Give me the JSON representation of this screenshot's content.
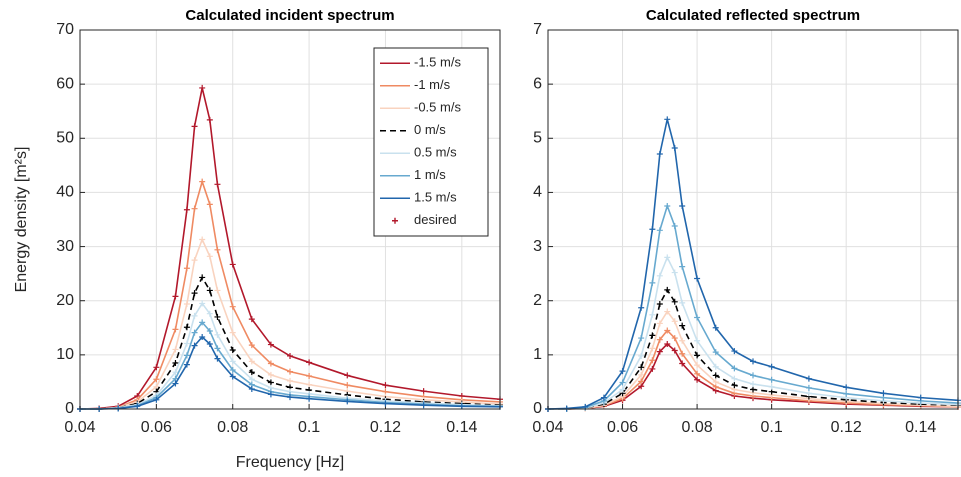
{
  "chart_data": [
    {
      "type": "line",
      "title": "Calculated incident spectrum",
      "xlabel": "Frequency [Hz]",
      "ylabel": "Energy density [m²s]",
      "xlim": [
        0.04,
        0.15
      ],
      "xticks": [
        0.04,
        0.06,
        0.08,
        0.1,
        0.12,
        0.14
      ],
      "ylim": [
        0,
        70
      ],
      "yticks": [
        0,
        10,
        20,
        30,
        40,
        50,
        60,
        70
      ],
      "grid": true,
      "legend": "upper right",
      "marker": "+",
      "marker_label": "desired",
      "marker_label_color": "#b2182b",
      "x": [
        0.04,
        0.045,
        0.05,
        0.055,
        0.06,
        0.065,
        0.068,
        0.07,
        0.072,
        0.074,
        0.076,
        0.08,
        0.085,
        0.09,
        0.095,
        0.1,
        0.11,
        0.12,
        0.13,
        0.14,
        0.15
      ],
      "series": [
        {
          "name": "-1.5 m/s",
          "color": "#b2182b",
          "values": [
            0,
            0.1,
            0.5,
            2.4,
            7.7,
            20.8,
            36.8,
            52.2,
            59.3,
            53.4,
            41.5,
            26.7,
            16.6,
            11.9,
            9.8,
            8.6,
            6.2,
            4.4,
            3.3,
            2.4,
            1.8
          ]
        },
        {
          "name": "-1 m/s",
          "color": "#ef8a62",
          "values": [
            0,
            0,
            0.3,
            1.7,
            5.5,
            14.7,
            26,
            37,
            42,
            37.8,
            29.4,
            18.9,
            11.8,
            8.4,
            6.9,
            6.1,
            4.4,
            3.2,
            2.3,
            1.7,
            1.3
          ]
        },
        {
          "name": "-0.5 m/s",
          "color": "#f9d3bf",
          "values": [
            0,
            0,
            0.3,
            1.3,
            4.1,
            11,
            19.4,
            27.5,
            31.3,
            28.2,
            21.9,
            14.1,
            8.8,
            6.3,
            5.2,
            4.5,
            3.3,
            2.3,
            1.7,
            1.3,
            0.9
          ]
        },
        {
          "name": "0 m/s",
          "color": "#000000",
          "dashed": true,
          "values": [
            0,
            0,
            0.2,
            1,
            3.2,
            8.5,
            15.1,
            21.4,
            24.3,
            21.9,
            17,
            10.9,
            6.8,
            4.9,
            4,
            3.5,
            2.6,
            1.8,
            1.3,
            1,
            0.7
          ]
        },
        {
          "name": "0.5 m/s",
          "color": "#c9e1ee",
          "values": [
            0,
            0,
            0.2,
            0.8,
            2.5,
            6.8,
            12.1,
            17.2,
            19.5,
            17.6,
            13.7,
            8.8,
            5.5,
            3.9,
            3.2,
            2.8,
            2,
            1.5,
            1.1,
            0.8,
            0.6
          ]
        },
        {
          "name": "1 m/s",
          "color": "#67a9cf",
          "values": [
            0,
            0,
            0.1,
            0.6,
            2.1,
            5.6,
            9.9,
            14.1,
            16,
            14.4,
            11.2,
            7.2,
            4.5,
            3.2,
            2.6,
            2.3,
            1.7,
            1.2,
            0.9,
            0.6,
            0.5
          ]
        },
        {
          "name": "1.5 m/s",
          "color": "#2166ac",
          "values": [
            0,
            0,
            0.1,
            0.5,
            1.7,
            4.7,
            8.2,
            11.7,
            13.3,
            12,
            9.3,
            6,
            3.7,
            2.7,
            2.2,
            1.9,
            1.4,
            1,
            0.7,
            0.5,
            0.4
          ]
        }
      ]
    },
    {
      "type": "line",
      "title": "Calculated reflected spectrum",
      "xlim": [
        0.04,
        0.15
      ],
      "xticks": [
        0.04,
        0.06,
        0.08,
        0.1,
        0.12,
        0.14
      ],
      "ylim": [
        0,
        7
      ],
      "yticks": [
        0,
        1,
        2,
        3,
        4,
        5,
        6,
        7
      ],
      "grid": true,
      "marker": "+",
      "x": [
        0.04,
        0.045,
        0.05,
        0.055,
        0.06,
        0.065,
        0.068,
        0.07,
        0.072,
        0.074,
        0.076,
        0.08,
        0.085,
        0.09,
        0.095,
        0.1,
        0.11,
        0.12,
        0.13,
        0.14,
        0.15
      ],
      "series": [
        {
          "color": "#b2182b",
          "values": [
            0,
            0,
            0.01,
            0.05,
            0.16,
            0.42,
            0.74,
            1.06,
            1.2,
            1.08,
            0.84,
            0.54,
            0.34,
            0.24,
            0.2,
            0.17,
            0.13,
            0.09,
            0.07,
            0.05,
            0.04
          ]
        },
        {
          "color": "#ef8a62",
          "values": [
            0,
            0,
            0.01,
            0.06,
            0.19,
            0.51,
            0.9,
            1.28,
            1.45,
            1.31,
            1.02,
            0.65,
            0.41,
            0.29,
            0.24,
            0.21,
            0.15,
            0.11,
            0.08,
            0.06,
            0.04
          ]
        },
        {
          "color": "#f9d3bf",
          "values": [
            0,
            0,
            0.01,
            0.07,
            0.23,
            0.63,
            1.12,
            1.58,
            1.8,
            1.62,
            1.26,
            0.81,
            0.5,
            0.36,
            0.3,
            0.26,
            0.19,
            0.14,
            0.1,
            0.07,
            0.05
          ]
        },
        {
          "color": "#000000",
          "dashed": true,
          "values": [
            0,
            0,
            0.02,
            0.09,
            0.29,
            0.77,
            1.36,
            1.94,
            2.2,
            1.98,
            1.54,
            0.99,
            0.62,
            0.44,
            0.36,
            0.32,
            0.23,
            0.17,
            0.12,
            0.09,
            0.07
          ]
        },
        {
          "color": "#c9e1ee",
          "values": [
            0,
            0,
            0.02,
            0.11,
            0.36,
            0.98,
            1.74,
            2.46,
            2.8,
            2.52,
            1.96,
            1.26,
            0.78,
            0.56,
            0.46,
            0.41,
            0.29,
            0.21,
            0.15,
            0.11,
            0.08
          ]
        },
        {
          "color": "#67a9cf",
          "values": [
            0,
            0,
            0.03,
            0.15,
            0.49,
            1.31,
            2.33,
            3.3,
            3.75,
            3.38,
            2.63,
            1.69,
            1.05,
            0.75,
            0.62,
            0.54,
            0.39,
            0.28,
            0.21,
            0.15,
            0.11
          ]
        },
        {
          "color": "#2166ac",
          "values": [
            0,
            0.01,
            0.04,
            0.21,
            0.7,
            1.87,
            3.32,
            4.71,
            5.35,
            4.82,
            3.75,
            2.41,
            1.5,
            1.07,
            0.88,
            0.78,
            0.56,
            0.4,
            0.29,
            0.21,
            0.16
          ]
        }
      ]
    }
  ]
}
